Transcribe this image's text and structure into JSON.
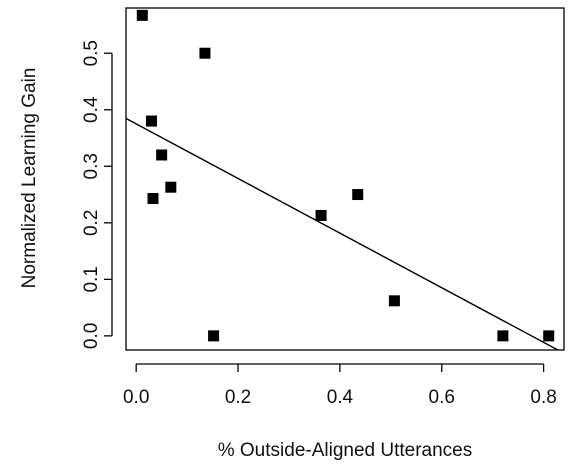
{
  "chart_data": {
    "type": "scatter",
    "title": "",
    "xlabel": "% Outside-Aligned Utterances",
    "ylabel": "Normalized Learning Gain",
    "xlim": [
      -0.02,
      0.84
    ],
    "ylim": [
      -0.025,
      0.58
    ],
    "x_ticks": [
      0.0,
      0.2,
      0.4,
      0.6,
      0.8
    ],
    "x_tick_labels": [
      "0.0",
      "0.2",
      "0.4",
      "0.6",
      "0.8"
    ],
    "y_ticks": [
      0.0,
      0.1,
      0.2,
      0.3,
      0.4,
      0.5
    ],
    "y_tick_labels": [
      "0.0",
      "0.1",
      "0.2",
      "0.3",
      "0.4",
      "0.5"
    ],
    "grid": false,
    "marker": "square",
    "color": "#000000",
    "points": [
      {
        "x": 0.012,
        "y": 0.567
      },
      {
        "x": 0.135,
        "y": 0.5
      },
      {
        "x": 0.03,
        "y": 0.38
      },
      {
        "x": 0.05,
        "y": 0.32
      },
      {
        "x": 0.068,
        "y": 0.263
      },
      {
        "x": 0.033,
        "y": 0.243
      },
      {
        "x": 0.152,
        "y": 0.0
      },
      {
        "x": 0.363,
        "y": 0.213
      },
      {
        "x": 0.435,
        "y": 0.25
      },
      {
        "x": 0.507,
        "y": 0.062
      },
      {
        "x": 0.72,
        "y": 0.0
      },
      {
        "x": 0.81,
        "y": 0.0
      }
    ],
    "fit_line": {
      "intercept": 0.375,
      "slope": -0.4831
    }
  }
}
